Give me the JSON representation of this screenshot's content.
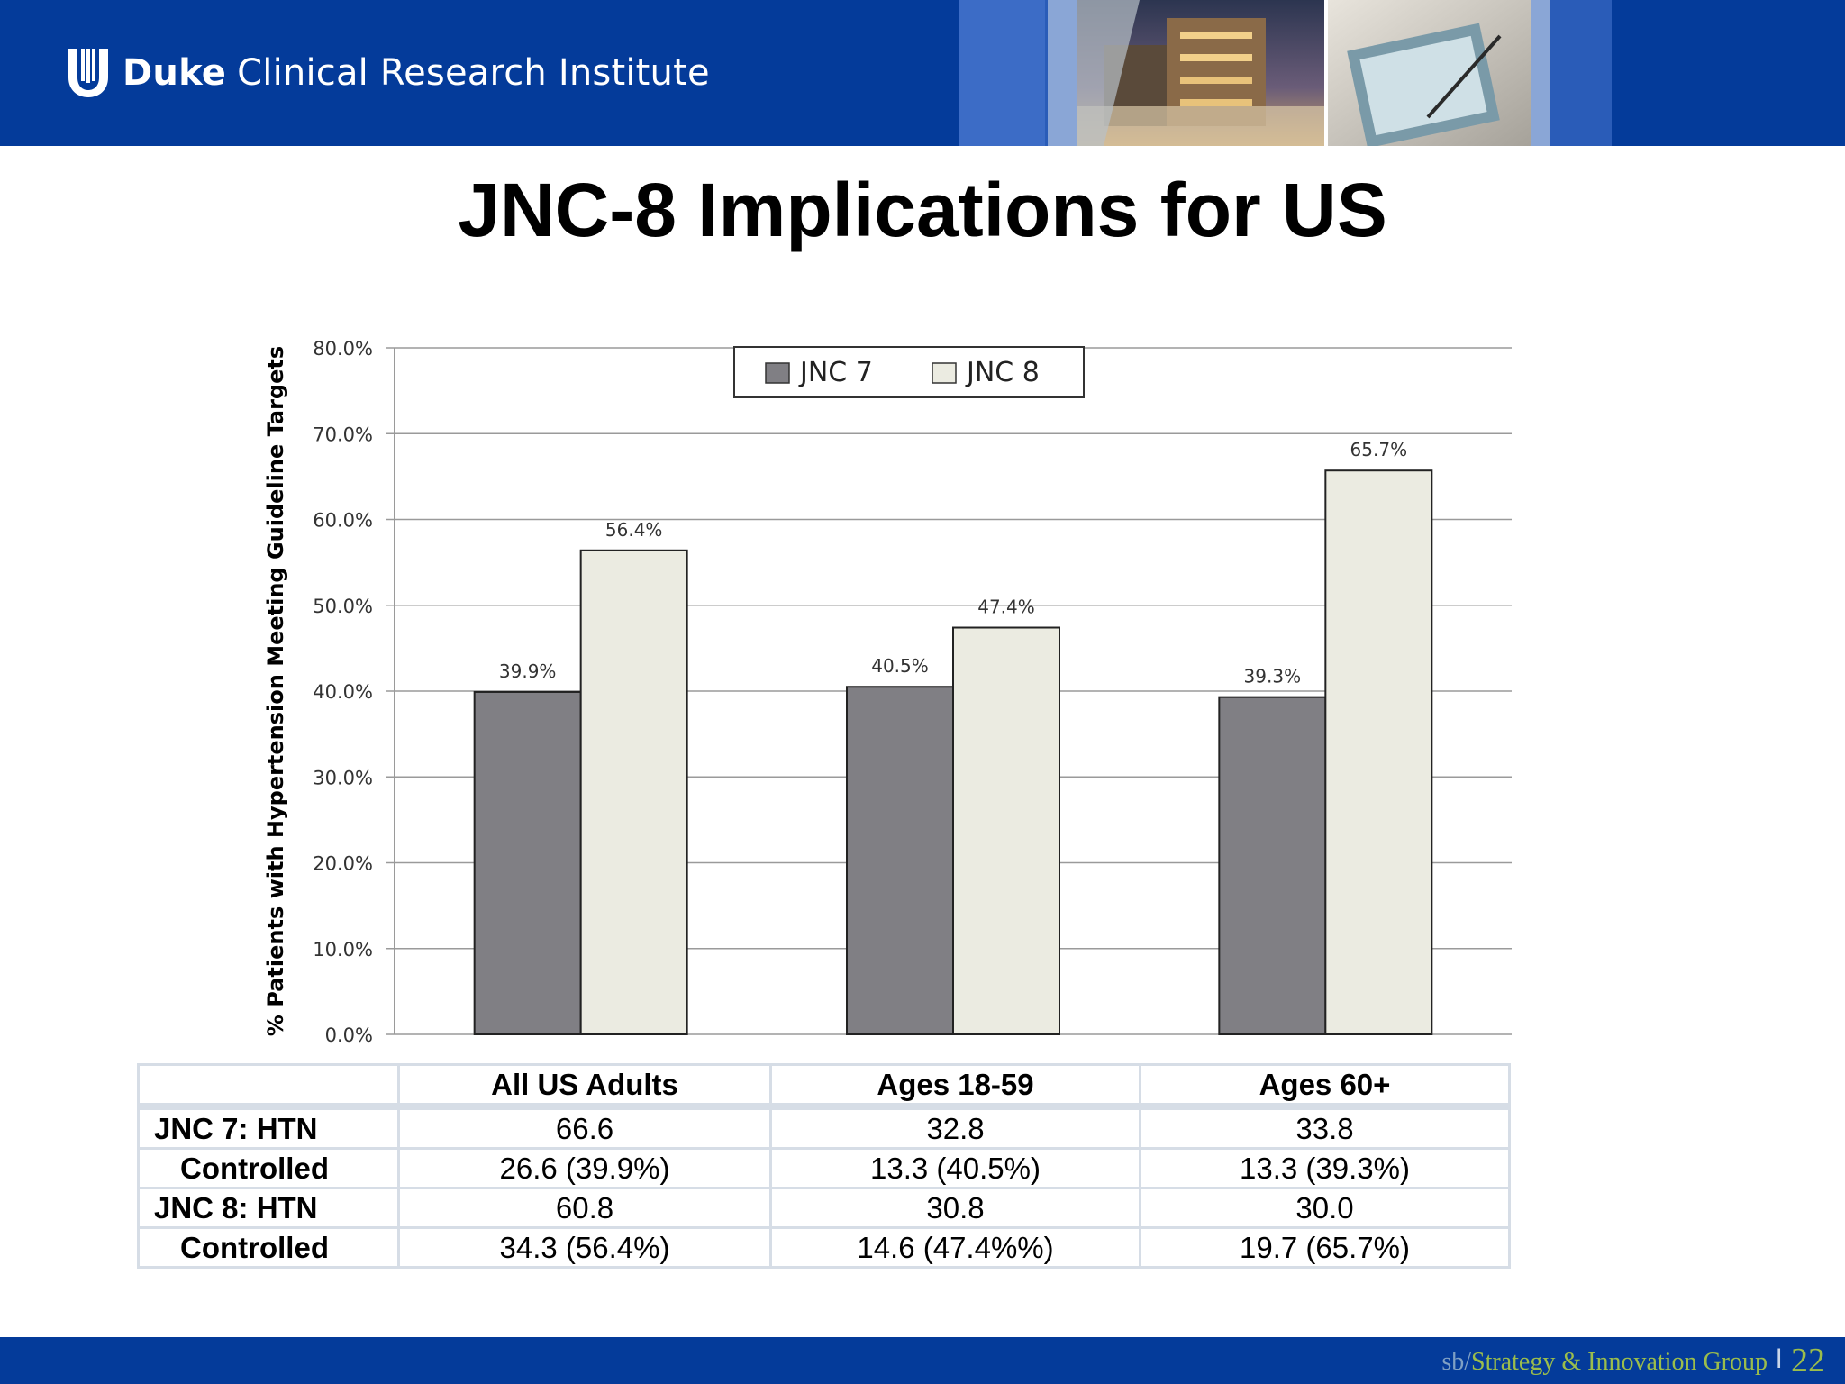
{
  "header": {
    "org_bold": "Duke",
    "org_rest": "Clinical Research Institute",
    "logo_icon": "duke-shield-icon"
  },
  "slide_title": "JNC-8 Implications for US",
  "chart_data": {
    "type": "bar",
    "ylabel": "% Patients with Hypertension Meeting Guideline Targets",
    "ylim": [
      0,
      80
    ],
    "yticks": [
      "0.0%",
      "10.0%",
      "20.0%",
      "30.0%",
      "40.0%",
      "50.0%",
      "60.0%",
      "70.0%",
      "80.0%"
    ],
    "grid": true,
    "legend_position": "top-center",
    "categories": [
      "All US Adults",
      "Ages 18-59",
      "Ages 60+"
    ],
    "series": [
      {
        "name": "JNC 7",
        "values": [
          39.9,
          40.5,
          39.3
        ],
        "labels": [
          "39.9%",
          "40.5%",
          "39.3%"
        ],
        "color": "#807f84"
      },
      {
        "name": "JNC 8",
        "values": [
          56.4,
          47.4,
          65.7
        ],
        "labels": [
          "56.4%",
          "47.4%",
          "65.7%"
        ],
        "color": "#ebebe1"
      }
    ]
  },
  "table": {
    "headers": [
      "",
      "All US Adults",
      "Ages 18-59",
      "Ages 60+"
    ],
    "rows": [
      {
        "label": "JNC 7: HTN",
        "values": [
          "66.6",
          "32.8",
          "33.8"
        ]
      },
      {
        "label": "Controlled",
        "values": [
          "26.6 (39.9%)",
          "13.3 (40.5%)",
          "13.3 (39.3%)"
        ]
      },
      {
        "label": "JNC 8: HTN",
        "values": [
          "60.8",
          "30.8",
          "30.0"
        ]
      },
      {
        "label": "Controlled",
        "values": [
          "34.3 (56.4%)",
          "14.6 (47.4%%)",
          "19.7 (65.7%)"
        ]
      }
    ]
  },
  "footer": {
    "prefix": "sb/",
    "group": "Strategy & Innovation Group",
    "separator": "l",
    "page": "22"
  },
  "colors": {
    "brand_blue": "#043b9a",
    "footer_green": "#9bbd4c"
  }
}
